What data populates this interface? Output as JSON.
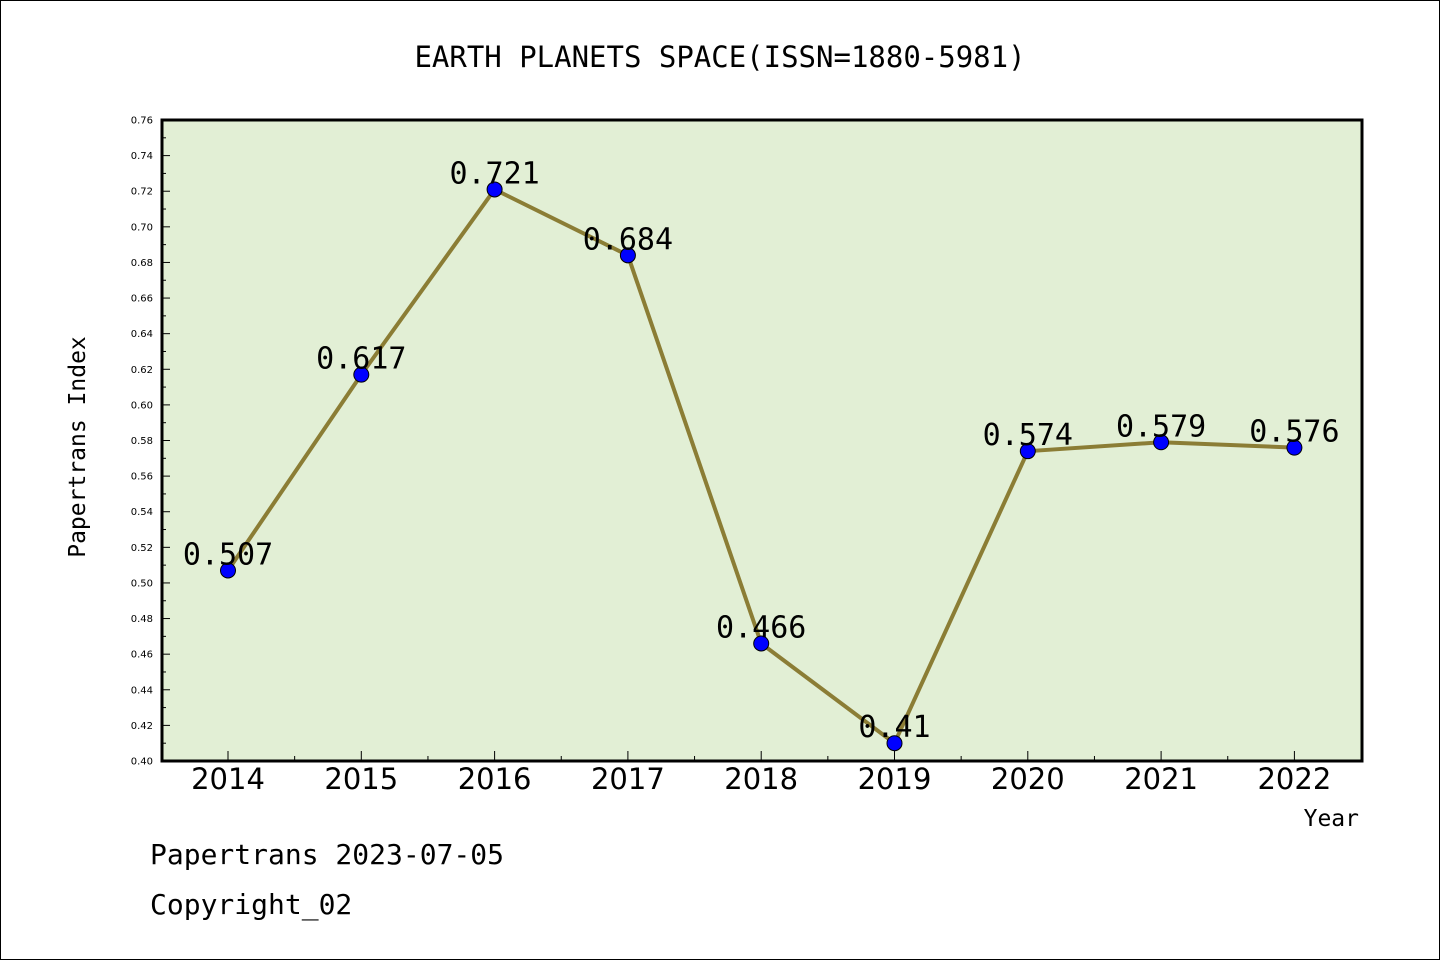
{
  "chart_data": {
    "type": "line",
    "title": "EARTH PLANETS SPACE(ISSN=1880-5981)",
    "xlabel": "Year",
    "ylabel": "Papertrans Index",
    "categories": [
      "2014",
      "2015",
      "2016",
      "2017",
      "2018",
      "2019",
      "2020",
      "2021",
      "2022"
    ],
    "series": [
      {
        "values": [
          0.507,
          0.617,
          0.721,
          0.684,
          0.466,
          0.41,
          0.574,
          0.579,
          0.576
        ],
        "data_labels": [
          "0.507",
          "0.617",
          "0.721",
          "0.684",
          "0.466",
          "0.41",
          "0.574",
          "0.579",
          "0.576"
        ]
      }
    ],
    "ylim": [
      0.4,
      0.76
    ],
    "yticks": [
      "0.40",
      "0.42",
      "0.44",
      "0.46",
      "0.48",
      "0.50",
      "0.52",
      "0.54",
      "0.56",
      "0.58",
      "0.60",
      "0.62",
      "0.64",
      "0.66",
      "0.68",
      "0.70",
      "0.72",
      "0.74",
      "0.76"
    ],
    "grid": false,
    "legend": "none",
    "colors": {
      "plot_background": "#e2efd5",
      "line": "#8b7d35",
      "marker": "#0000ff"
    }
  },
  "footer": {
    "line1": "Papertrans 2023-07-05",
    "line2": "Copyright_02"
  }
}
